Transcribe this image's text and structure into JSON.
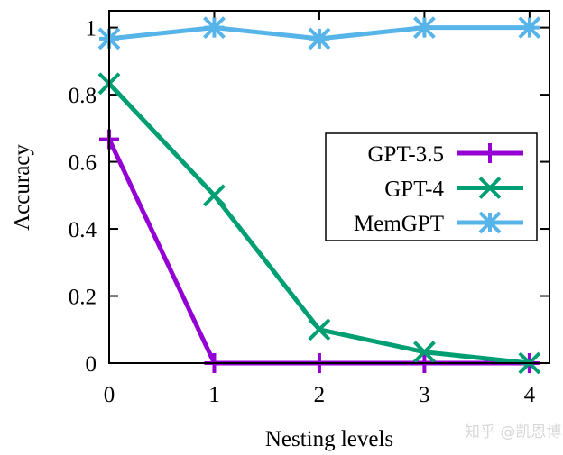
{
  "chart_data": {
    "type": "line",
    "xlabel": "Nesting levels",
    "ylabel": "Accuracy",
    "x": [
      0,
      1,
      2,
      3,
      4
    ],
    "xticks": [
      "0",
      "1",
      "2",
      "3",
      "4"
    ],
    "yticks": [
      "0",
      "0.2",
      "0.4",
      "0.6",
      "0.8",
      "1"
    ],
    "xlim": [
      0,
      4.19
    ],
    "ylim": [
      0,
      1.05
    ],
    "grid": false,
    "legend_position": "right",
    "series": [
      {
        "name": "GPT-3.5",
        "values": [
          0.667,
          0,
          0,
          0,
          0
        ],
        "color": "#9400d3",
        "marker": "plus"
      },
      {
        "name": "GPT-4",
        "values": [
          0.833,
          0.5,
          0.1,
          0.033,
          0
        ],
        "color": "#009e73",
        "marker": "cross"
      },
      {
        "name": "MemGPT",
        "values": [
          0.967,
          1,
          0.967,
          1,
          1
        ],
        "color": "#56b4e9",
        "marker": "star"
      }
    ]
  },
  "watermark": "知乎 @凯恩博"
}
